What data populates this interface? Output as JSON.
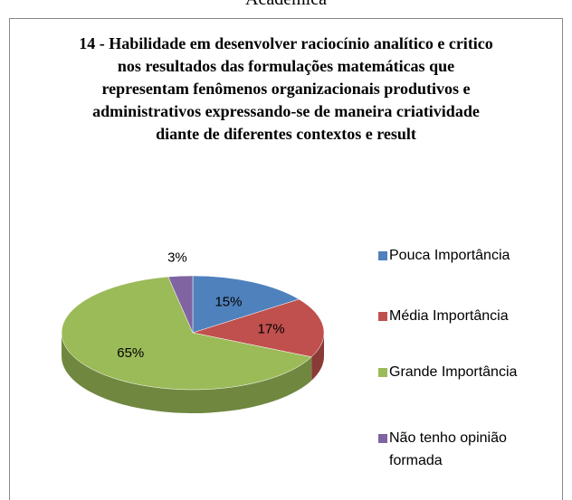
{
  "page_caption": "Acadêmica",
  "chart_data": {
    "type": "pie",
    "title": "14 - Habilidade em desenvolver raciocínio analítico e critico nos resultados das formulações matemáticas que representam fenômenos organizacionais produtivos e administrativos expressando-se de maneira criatividade diante de diferentes contextos e result",
    "categories": [
      "Pouca Importância",
      "Média Importância",
      "Grande Importância",
      "Não tenho opinião formada"
    ],
    "values": [
      15,
      17,
      65,
      3
    ],
    "value_labels": [
      "15%",
      "17%",
      "65%",
      "3%"
    ],
    "colors": [
      "#4f81bd",
      "#c0504d",
      "#9bbb59",
      "#8064a2"
    ],
    "legend": "right"
  }
}
